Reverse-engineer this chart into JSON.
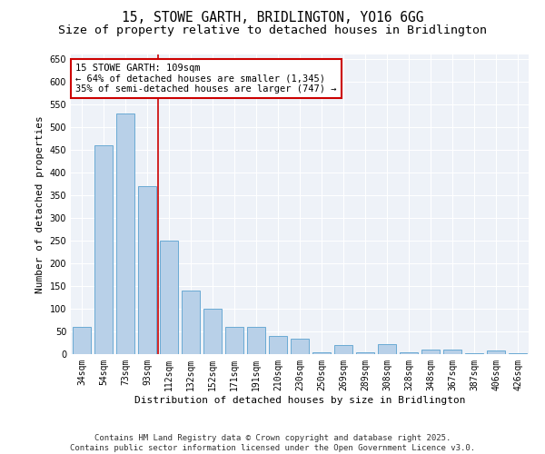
{
  "title_line1": "15, STOWE GARTH, BRIDLINGTON, YO16 6GG",
  "title_line2": "Size of property relative to detached houses in Bridlington",
  "xlabel": "Distribution of detached houses by size in Bridlington",
  "ylabel": "Number of detached properties",
  "categories": [
    "34sqm",
    "54sqm",
    "73sqm",
    "93sqm",
    "112sqm",
    "132sqm",
    "152sqm",
    "171sqm",
    "191sqm",
    "210sqm",
    "230sqm",
    "250sqm",
    "269sqm",
    "289sqm",
    "308sqm",
    "328sqm",
    "348sqm",
    "367sqm",
    "387sqm",
    "406sqm",
    "426sqm"
  ],
  "values": [
    60,
    460,
    530,
    370,
    250,
    140,
    100,
    60,
    60,
    40,
    35,
    5,
    20,
    5,
    22,
    5,
    10,
    10,
    3,
    8,
    3
  ],
  "bar_color": "#b8d0e8",
  "bar_edge_color": "#6aaad4",
  "reference_line_color": "#cc0000",
  "annotation_text": "15 STOWE GARTH: 109sqm\n← 64% of detached houses are smaller (1,345)\n35% of semi-detached houses are larger (747) →",
  "annotation_box_facecolor": "#ffffff",
  "annotation_box_edgecolor": "#cc0000",
  "ylim": [
    0,
    660
  ],
  "yticks": [
    0,
    50,
    100,
    150,
    200,
    250,
    300,
    350,
    400,
    450,
    500,
    550,
    600,
    650
  ],
  "background_color": "#eef2f8",
  "grid_color": "#ffffff",
  "footer_line1": "Contains HM Land Registry data © Crown copyright and database right 2025.",
  "footer_line2": "Contains public sector information licensed under the Open Government Licence v3.0.",
  "title_fontsize": 10.5,
  "subtitle_fontsize": 9.5,
  "axis_label_fontsize": 8,
  "tick_fontsize": 7,
  "footer_fontsize": 6.5,
  "annotation_fontsize": 7.5
}
